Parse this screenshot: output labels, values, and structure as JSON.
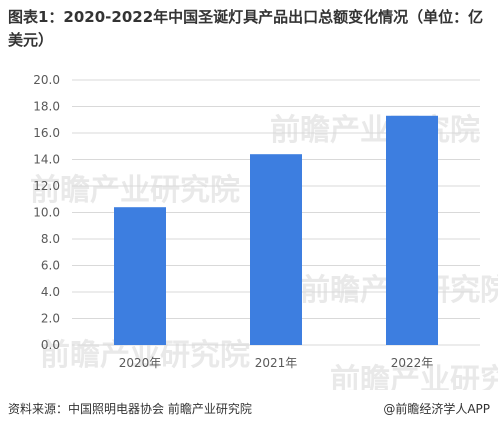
{
  "title": "图表1：2020-2022年中国圣诞灯具产品出口总额变化情况（单位：亿美元）",
  "watermark": "前瞻产业研究院",
  "source": "资料来源：中国照明电器协会 前瞻产业研究院",
  "credit": "@前瞻经济学人APP",
  "chart_data": {
    "type": "bar",
    "categories": [
      "2020年",
      "2021年",
      "2022年"
    ],
    "values": [
      10.4,
      14.4,
      17.3
    ],
    "ylim": [
      0,
      20
    ],
    "yticks": [
      "0.0",
      "2.0",
      "4.0",
      "6.0",
      "8.0",
      "10.0",
      "12.0",
      "14.0",
      "16.0",
      "18.0",
      "20.0"
    ],
    "grid": true,
    "bar_color": "#3d7ee0"
  }
}
